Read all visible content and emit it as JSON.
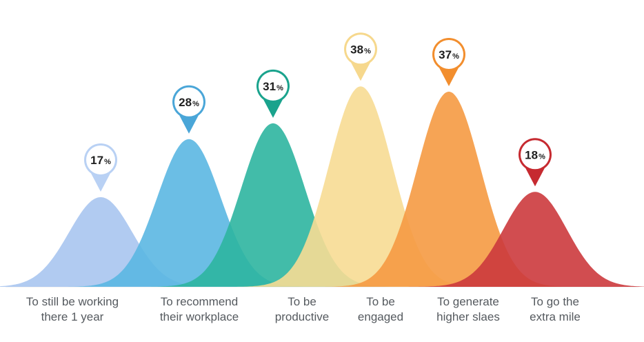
{
  "chart_data": {
    "type": "area",
    "unit": "%",
    "ylim": [
      0,
      38
    ],
    "grid": false,
    "legend": "none",
    "categories": [
      {
        "lines": [
          "To still be working",
          "there 1 year"
        ],
        "value": 17,
        "color": "#a9c5ef",
        "pin": "#b9d1f4"
      },
      {
        "lines": [
          "To recommend",
          "their workplace"
        ],
        "value": 28,
        "color": "#5bb7e2",
        "pin": "#4aa6d8"
      },
      {
        "lines": [
          "To be",
          "productive"
        ],
        "value": 31,
        "color": "#2eb5a0",
        "pin": "#1aa38d"
      },
      {
        "lines": [
          "To be",
          "engaged"
        ],
        "value": 38,
        "color": "#f7dc93",
        "pin": "#f6d88d"
      },
      {
        "lines": [
          "To generate",
          "higher slaes"
        ],
        "value": 37,
        "color": "#f59a43",
        "pin": "#f28e2e"
      },
      {
        "lines": [
          "To go the",
          "extra mile"
        ],
        "value": 18,
        "color": "#cc3a3d",
        "pin": "#c62a30"
      }
    ]
  }
}
